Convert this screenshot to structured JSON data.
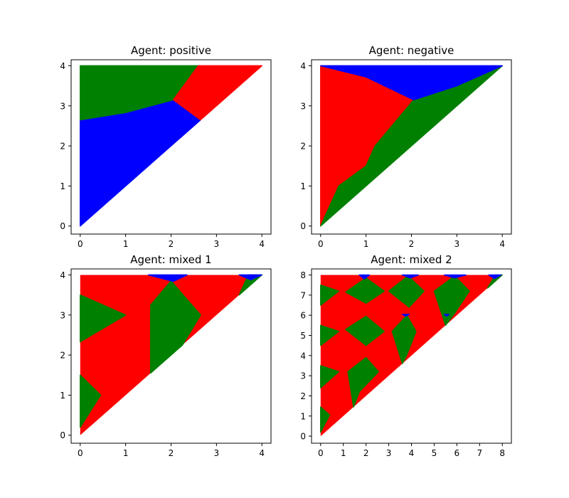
{
  "colors": {
    "red": "#ff0000",
    "green": "#008000",
    "blue": "#0000ff"
  },
  "chart_data": [
    {
      "type": "area",
      "title": "Agent: positive",
      "xlim": [
        -0.2,
        4.2
      ],
      "ylim": [
        -0.2,
        4.15
      ],
      "xticks": [
        "0",
        "1",
        "2",
        "3",
        "4"
      ],
      "yticks": [
        "0",
        "1",
        "2",
        "3",
        "4"
      ],
      "region_colors": [
        "blue",
        "green",
        "red"
      ],
      "regions": [
        {
          "color": "blue",
          "points": [
            [
              0,
              0
            ],
            [
              0,
              2.65
            ],
            [
              1,
              2.83
            ],
            [
              2.05,
              3.15
            ],
            [
              2.65,
              2.65
            ]
          ]
        },
        {
          "color": "green",
          "points": [
            [
              0,
              2.65
            ],
            [
              1,
              2.83
            ],
            [
              2.05,
              3.15
            ],
            [
              2.6,
              4
            ],
            [
              0,
              4
            ]
          ]
        },
        {
          "color": "red",
          "points": [
            [
              2.05,
              3.15
            ],
            [
              2.65,
              2.65
            ],
            [
              4,
              4
            ],
            [
              2.6,
              4
            ]
          ]
        }
      ]
    },
    {
      "type": "area",
      "title": "Agent: negative",
      "xlim": [
        -0.2,
        4.2
      ],
      "ylim": [
        -0.2,
        4.15
      ],
      "xticks": [
        "0",
        "1",
        "2",
        "3",
        "4"
      ],
      "yticks": [
        "0",
        "1",
        "2",
        "3",
        "4"
      ],
      "region_colors": [
        "red",
        "green",
        "blue"
      ],
      "regions": [
        {
          "color": "red",
          "points": [
            [
              0,
              0
            ],
            [
              0,
              4
            ],
            [
              1,
              3.72
            ],
            [
              2.05,
              3.15
            ],
            [
              1.2,
              2
            ],
            [
              1,
              1.5
            ],
            [
              0.4,
              1
            ]
          ]
        },
        {
          "color": "green",
          "points": [
            [
              0,
              0
            ],
            [
              0.4,
              1
            ],
            [
              1,
              1.5
            ],
            [
              1.2,
              2
            ],
            [
              2.05,
              3.15
            ],
            [
              3,
              3.5
            ],
            [
              4,
              4
            ]
          ]
        },
        {
          "color": "blue",
          "points": [
            [
              0,
              4
            ],
            [
              4,
              4
            ],
            [
              3,
              3.5
            ],
            [
              2.05,
              3.15
            ],
            [
              1,
              3.72
            ]
          ]
        }
      ]
    },
    {
      "type": "area",
      "title": "Agent: mixed 1",
      "xlim": [
        -0.2,
        4.2
      ],
      "ylim": [
        -0.2,
        4.15
      ],
      "xticks": [
        "0",
        "1",
        "2",
        "3",
        "4"
      ],
      "yticks": [
        "0",
        "1",
        "2",
        "3",
        "4"
      ],
      "region_colors": [
        "red",
        "green",
        "blue"
      ],
      "background": "red",
      "regions": [
        {
          "color": "green",
          "points": [
            [
              0,
              3.5
            ],
            [
              1,
              3
            ],
            [
              0,
              2.33
            ]
          ]
        },
        {
          "color": "green",
          "points": [
            [
              0,
              1.5
            ],
            [
              0.45,
              1
            ],
            [
              0,
              0.2
            ]
          ]
        },
        {
          "color": "green",
          "points": [
            [
              1.55,
              3.25
            ],
            [
              2,
              3.85
            ],
            [
              2.65,
              3
            ],
            [
              2.25,
              2.25
            ],
            [
              1.55,
              1.55
            ]
          ]
        },
        {
          "color": "green",
          "points": [
            [
              3.5,
              3.5
            ],
            [
              3.7,
              4
            ],
            [
              4,
              4
            ]
          ]
        },
        {
          "color": "blue",
          "points": [
            [
              1.5,
              4
            ],
            [
              2.35,
              4
            ],
            [
              2.05,
              3.84
            ]
          ]
        },
        {
          "color": "blue",
          "points": [
            [
              3.5,
              4
            ],
            [
              4,
              4
            ],
            [
              3.75,
              3.88
            ]
          ]
        }
      ]
    },
    {
      "type": "area",
      "title": "Agent: mixed 2",
      "xlim": [
        -0.4,
        8.4
      ],
      "ylim": [
        -0.35,
        8.3
      ],
      "xticks": [
        "0",
        "1",
        "2",
        "3",
        "4",
        "5",
        "6",
        "7",
        "8"
      ],
      "yticks": [
        "0",
        "1",
        "2",
        "3",
        "4",
        "5",
        "6",
        "7",
        "8"
      ],
      "region_colors": [
        "red",
        "green",
        "blue"
      ],
      "background": "red",
      "regions": [
        {
          "color": "green",
          "points": [
            [
              0,
              7.5
            ],
            [
              0.8,
              7.2
            ],
            [
              0,
              6.5
            ]
          ]
        },
        {
          "color": "green",
          "points": [
            [
              0,
              5.5
            ],
            [
              0.8,
              5.2
            ],
            [
              0,
              4.5
            ]
          ]
        },
        {
          "color": "green",
          "points": [
            [
              0,
              3.5
            ],
            [
              0.8,
              3.2
            ],
            [
              0,
              2.4
            ]
          ]
        },
        {
          "color": "green",
          "points": [
            [
              0,
              1.45
            ],
            [
              0.4,
              1.05
            ],
            [
              0,
              0.2
            ]
          ]
        },
        {
          "color": "green",
          "points": [
            [
              1.1,
              7.15
            ],
            [
              2,
              7.85
            ],
            [
              2.8,
              7.2
            ],
            [
              2,
              6.6
            ]
          ]
        },
        {
          "color": "green",
          "points": [
            [
              1.1,
              5.3
            ],
            [
              2,
              5.95
            ],
            [
              2.8,
              5.2
            ],
            [
              2,
              4.5
            ]
          ]
        },
        {
          "color": "green",
          "points": [
            [
              1.2,
              3.2
            ],
            [
              2,
              3.9
            ],
            [
              2.55,
              3.2
            ],
            [
              1.7,
              2.2
            ],
            [
              1.45,
              1.45
            ]
          ]
        },
        {
          "color": "green",
          "points": [
            [
              3,
              7.2
            ],
            [
              3.85,
              7.95
            ],
            [
              4.55,
              7.2
            ],
            [
              3.9,
              6.4
            ]
          ]
        },
        {
          "color": "green",
          "points": [
            [
              3.15,
              5.2
            ],
            [
              3.8,
              6
            ],
            [
              4.2,
              5.2
            ],
            [
              3.8,
              4.05
            ],
            [
              3.6,
              3.6
            ]
          ]
        },
        {
          "color": "green",
          "points": [
            [
              5,
              7.2
            ],
            [
              5.9,
              7.95
            ],
            [
              6.55,
              7.2
            ],
            [
              5.9,
              6.1
            ],
            [
              5.5,
              5.5
            ]
          ]
        },
        {
          "color": "green",
          "points": [
            [
              7.35,
              7.35
            ],
            [
              7.7,
              8
            ],
            [
              8,
              8
            ]
          ]
        },
        {
          "color": "blue",
          "points": [
            [
              1.7,
              8
            ],
            [
              2.15,
              8
            ],
            [
              1.92,
              7.8
            ]
          ]
        },
        {
          "color": "blue",
          "points": [
            [
              3.6,
              8
            ],
            [
              4.3,
              8
            ],
            [
              3.95,
              7.85
            ]
          ]
        },
        {
          "color": "blue",
          "points": [
            [
              5.45,
              8
            ],
            [
              6.4,
              8
            ],
            [
              5.9,
              7.85
            ]
          ]
        },
        {
          "color": "blue",
          "points": [
            [
              7.4,
              8
            ],
            [
              7.95,
              8
            ],
            [
              7.65,
              7.82
            ]
          ]
        },
        {
          "color": "blue",
          "points": [
            [
              3.6,
              6.04
            ],
            [
              3.9,
              6.04
            ],
            [
              3.75,
              5.96
            ]
          ]
        },
        {
          "color": "blue",
          "points": [
            [
              5.45,
              6.04
            ],
            [
              5.65,
              6.04
            ],
            [
              5.55,
              5.96
            ]
          ]
        }
      ]
    }
  ]
}
